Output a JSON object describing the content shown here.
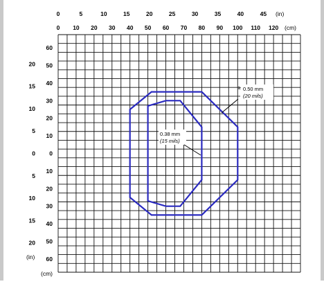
{
  "diagram": {
    "top_scale_in": {
      "labels": [
        "0",
        "5",
        "10",
        "15",
        "20",
        "25",
        "30",
        "35",
        "40",
        "45"
      ],
      "unit": "(in)"
    },
    "top_scale_cm": {
      "labels": [
        "0",
        "10",
        "20",
        "30",
        "40",
        "50",
        "60",
        "70",
        "80",
        "90",
        "100",
        "110",
        "120"
      ],
      "unit": "(cm)"
    },
    "left_scale_cm": {
      "labels": [
        "60",
        "50",
        "40",
        "30",
        "20",
        "10",
        "0",
        "10",
        "20",
        "30",
        "40",
        "50",
        "60"
      ],
      "unit": "(cm)"
    },
    "left_scale_in": {
      "labels": [
        "20",
        "15",
        "10",
        "5",
        "0",
        "5",
        "10",
        "15",
        "20"
      ],
      "unit": "(in)"
    },
    "zones": [
      {
        "label_main": "0.50 mm",
        "label_prefix": "≥",
        "label_sub": "(20 mils)",
        "color": "#2b2bbf",
        "near_cm": 40,
        "far_cm": 100,
        "peak_half_width_cm": 15,
        "flat_top_from_cm": 52,
        "flat_top_to_cm": 80
      },
      {
        "label_main": "0.38 mm",
        "label_sub": "(15 mils)",
        "color": "#2b2bbf",
        "near_cm": 50,
        "far_cm": 80,
        "peak_half_width_cm": 30,
        "flat_top_from_cm": 60,
        "flat_top_to_cm": 68
      }
    ]
  }
}
